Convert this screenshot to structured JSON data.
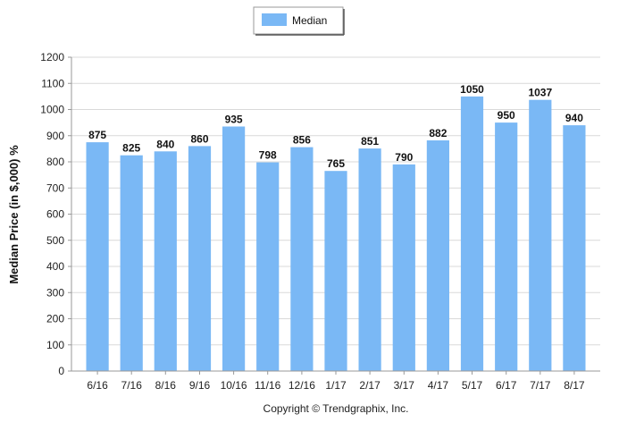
{
  "chart_data": {
    "type": "bar",
    "categories": [
      "6/16",
      "7/16",
      "8/16",
      "9/16",
      "10/16",
      "11/16",
      "12/16",
      "1/17",
      "2/17",
      "3/17",
      "4/17",
      "5/17",
      "6/17",
      "7/17",
      "8/17"
    ],
    "series": [
      {
        "name": "Median",
        "values": [
          875,
          825,
          840,
          860,
          935,
          798,
          856,
          765,
          851,
          790,
          882,
          1050,
          950,
          1037,
          940
        ]
      }
    ],
    "ylabel": "Median Price (in $,000) %",
    "xlabel": "",
    "ylim": [
      0,
      1200
    ],
    "yticks": [
      0,
      100,
      200,
      300,
      400,
      500,
      600,
      700,
      800,
      900,
      1000,
      1100,
      1200
    ],
    "grid": true,
    "legend": "top-center",
    "bar_color": "#7ab8f5",
    "footer": "Copyright © Trendgraphix, Inc."
  }
}
